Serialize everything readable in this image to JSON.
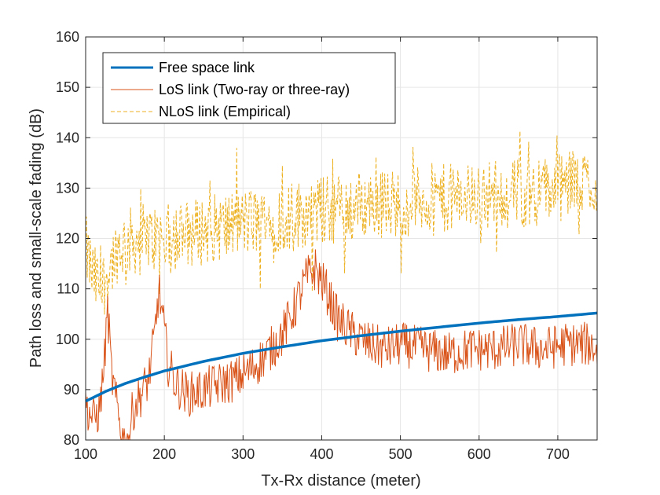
{
  "chart_data": {
    "type": "line",
    "title": "",
    "xlabel": "Tx-Rx distance (meter)",
    "ylabel": "Path loss and small-scale fading (dB)",
    "xlim": [
      100,
      750
    ],
    "ylim": [
      80,
      160
    ],
    "xticks": [
      100,
      200,
      300,
      400,
      500,
      600,
      700
    ],
    "yticks": [
      80,
      90,
      100,
      110,
      120,
      130,
      140,
      150,
      160
    ],
    "grid": true,
    "legend_position": "top-left",
    "series": [
      {
        "name": "Free space link",
        "color": "#0072BD",
        "style": "solid-thick",
        "x": [
          100,
          125,
          150,
          175,
          200,
          250,
          300,
          350,
          400,
          450,
          500,
          550,
          600,
          650,
          700,
          750
        ],
        "y": [
          87.7,
          89.6,
          91.2,
          92.5,
          93.7,
          95.6,
          97.2,
          98.5,
          99.7,
          100.7,
          101.6,
          102.4,
          103.2,
          103.9,
          104.5,
          105.2
        ]
      },
      {
        "name": "LoS link (Two-ray or three-ray)",
        "color": "#D95319",
        "style": "solid-thin",
        "x": [
          100,
          110,
          118,
          124,
          128,
          133,
          138,
          145,
          152,
          160,
          170,
          180,
          188,
          193,
          198,
          205,
          215,
          230,
          250,
          270,
          290,
          310,
          330,
          350,
          365,
          380,
          392,
          405,
          420,
          440,
          460,
          480,
          500,
          530,
          560,
          590,
          620,
          650,
          680,
          710,
          740,
          750
        ],
        "y": [
          87,
          84,
          86,
          96,
          106,
          93,
          88,
          82,
          78,
          86,
          89,
          92,
          101,
          110,
          104,
          95,
          91,
          89,
          90,
          91,
          92,
          94,
          97,
          101,
          106,
          112,
          114,
          110,
          104,
          101,
          99,
          98,
          99,
          98,
          97,
          98,
          98,
          99,
          98,
          99,
          99,
          98
        ]
      },
      {
        "name": "NLoS link (Empirical)",
        "color": "#EDB120",
        "style": "dashed",
        "x": [
          100,
          110,
          120,
          130,
          140,
          150,
          170,
          200,
          230,
          260,
          300,
          340,
          380,
          420,
          460,
          500,
          540,
          580,
          620,
          660,
          700,
          730,
          750
        ],
        "y": [
          118,
          112,
          110,
          114,
          118,
          119,
          120,
          120,
          121,
          122,
          123,
          124,
          125,
          126,
          127,
          127,
          128,
          128,
          129,
          129,
          130,
          131,
          131
        ]
      }
    ]
  }
}
